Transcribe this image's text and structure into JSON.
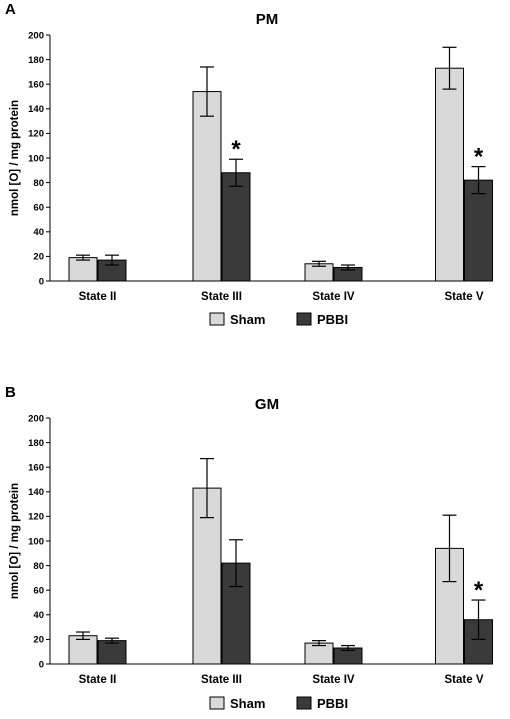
{
  "colors": {
    "sham": "#d9d9d9",
    "pbbi": "#3a3a3a",
    "outline": "#000000"
  },
  "chart_data": [
    {
      "panel": "A",
      "type": "bar",
      "title": "PM",
      "ylabel": "nmol [O] / mg protein",
      "xlabel": "",
      "ylim": [
        0,
        200
      ],
      "yticks": [
        "0",
        "20",
        "40",
        "60",
        "80",
        "100",
        "120",
        "140",
        "160",
        "180",
        "200"
      ],
      "categories": [
        "State II",
        "State III",
        "State IV",
        "State V"
      ],
      "series": [
        {
          "name": "Sham",
          "values": [
            19,
            154,
            14,
            173
          ],
          "errors": [
            2,
            20,
            2,
            17
          ]
        },
        {
          "name": "PBBI",
          "values": [
            17,
            88,
            11,
            82
          ],
          "errors": [
            4,
            11,
            2,
            11
          ]
        }
      ],
      "significance": [
        {
          "category": "State III",
          "series": "PBBI",
          "label": "*"
        },
        {
          "category": "State V",
          "series": "PBBI",
          "label": "*"
        }
      ],
      "legend": [
        "Sham",
        "PBBI"
      ],
      "legend_position": "bottom"
    },
    {
      "panel": "B",
      "type": "bar",
      "title": "GM",
      "ylabel": "nmol [O] / mg protein",
      "xlabel": "",
      "ylim": [
        0,
        200
      ],
      "yticks": [
        "0",
        "20",
        "40",
        "60",
        "80",
        "100",
        "120",
        "140",
        "160",
        "180",
        "200"
      ],
      "categories": [
        "State II",
        "State III",
        "State IV",
        "State V"
      ],
      "series": [
        {
          "name": "Sham",
          "values": [
            23,
            143,
            17,
            94
          ],
          "errors": [
            3,
            24,
            2,
            27
          ]
        },
        {
          "name": "PBBI",
          "values": [
            19,
            82,
            13,
            36
          ],
          "errors": [
            2,
            19,
            2,
            16
          ]
        }
      ],
      "significance": [
        {
          "category": "State V",
          "series": "PBBI",
          "label": "*"
        }
      ],
      "legend": [
        "Sham",
        "PBBI"
      ],
      "legend_position": "bottom"
    }
  ]
}
